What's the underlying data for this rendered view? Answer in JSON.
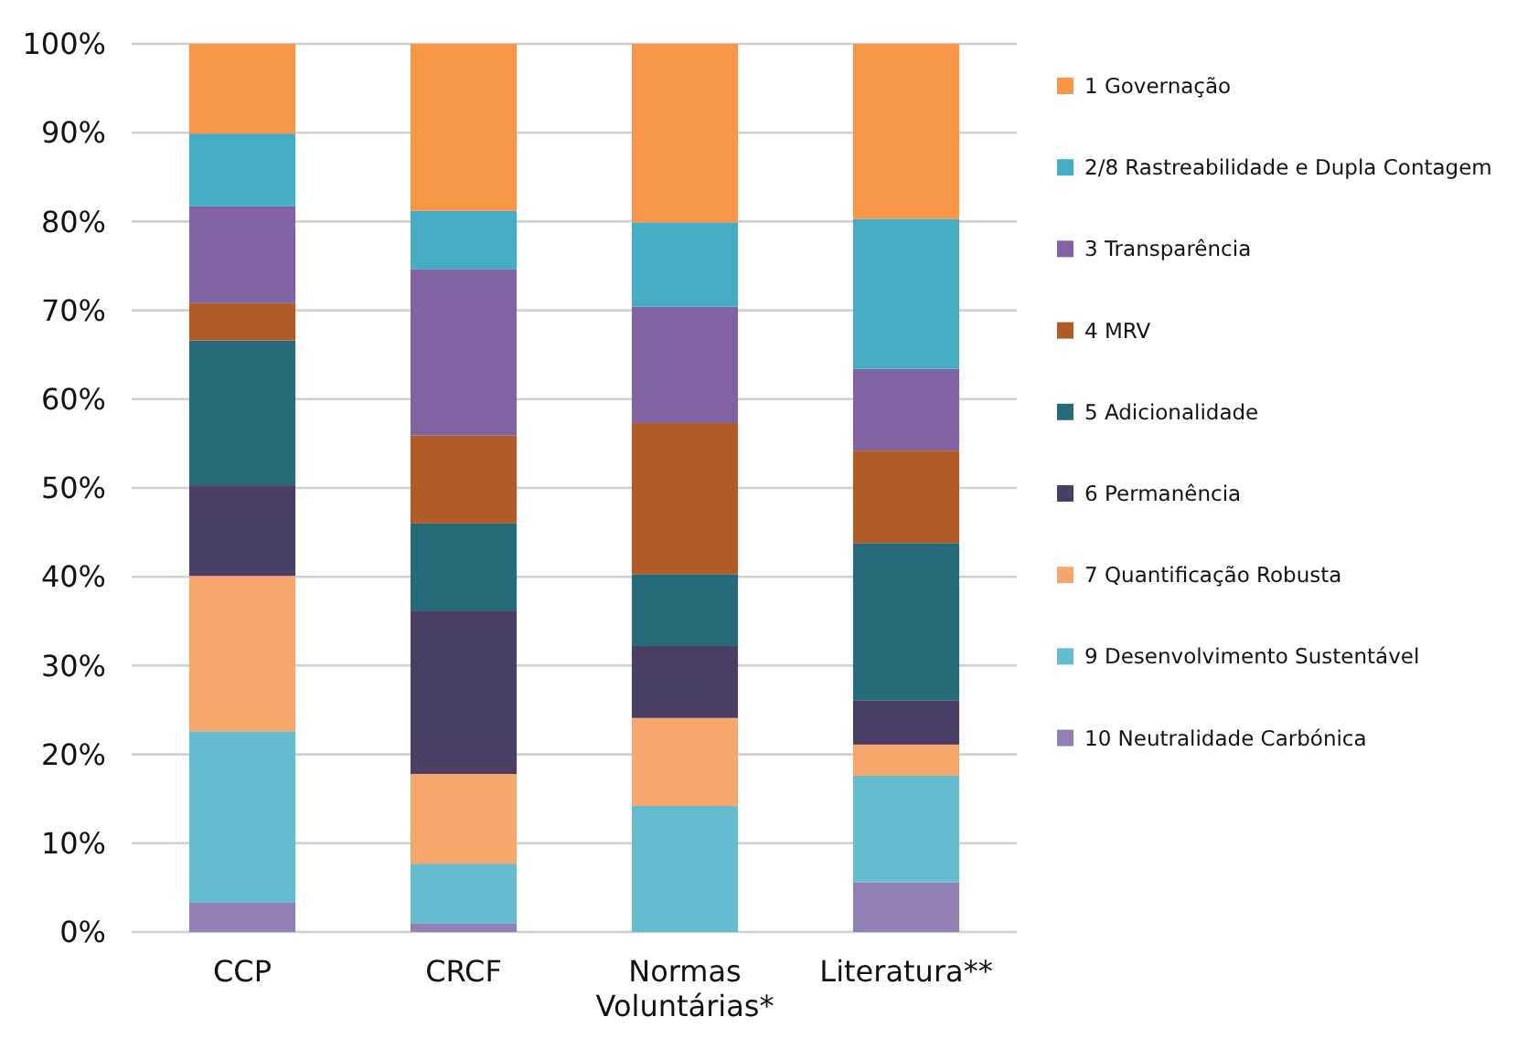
{
  "chart_data": {
    "type": "bar",
    "stacked": true,
    "categories": [
      "CCP",
      "CRCF",
      "Normas Voluntárias*",
      "Literatura**"
    ],
    "ylim": [
      0,
      100
    ],
    "yticks": [
      {
        "value": 0,
        "label": "0%"
      },
      {
        "value": 10,
        "label": "10%"
      },
      {
        "value": 20,
        "label": "20%"
      },
      {
        "value": 30,
        "label": "30%"
      },
      {
        "value": 40,
        "label": "40%"
      },
      {
        "value": 50,
        "label": "50%"
      },
      {
        "value": 60,
        "label": "60%"
      },
      {
        "value": 70,
        "label": "70%"
      },
      {
        "value": 80,
        "label": "80%"
      },
      {
        "value": 90,
        "label": "90%"
      },
      {
        "value": 100,
        "label": "100%"
      }
    ],
    "grid": "y",
    "legend": "right",
    "series": [
      {
        "name": "10 Neutralidade Carbónica",
        "color": "#8f7fb3",
        "values": [
          3.3,
          1.0,
          0,
          5.6
        ]
      },
      {
        "name": "9 Desenvolvimento Sustentável",
        "color": "#65bccf",
        "values": [
          19.3,
          6.7,
          14.2,
          12.0
        ]
      },
      {
        "name": "7 Quantificação Robusta",
        "color": "#f7a76e",
        "values": [
          17.5,
          10.1,
          9.9,
          3.5
        ]
      },
      {
        "name": "6 Permanência",
        "color": "#4a3e65",
        "values": [
          10.2,
          18.4,
          8.1,
          5.0
        ]
      },
      {
        "name": "5 Adicionalidade",
        "color": "#276a7a",
        "values": [
          16.3,
          9.8,
          8.1,
          17.7
        ]
      },
      {
        "name": "4 MRV",
        "color": "#b15b26",
        "values": [
          4.2,
          9.9,
          17.0,
          10.4
        ]
      },
      {
        "name": "3 Transparência",
        "color": "#8064a2",
        "values": [
          10.9,
          18.7,
          13.1,
          9.2
        ]
      },
      {
        "name": "2/8 Rastreabilidade e Dupla Contagem",
        "color": "#46acc4",
        "values": [
          8.2,
          6.6,
          9.5,
          16.9
        ]
      },
      {
        "name": "1 Governação",
        "color": "#f79646",
        "values": [
          10.1,
          18.8,
          20.1,
          19.7
        ]
      }
    ]
  }
}
